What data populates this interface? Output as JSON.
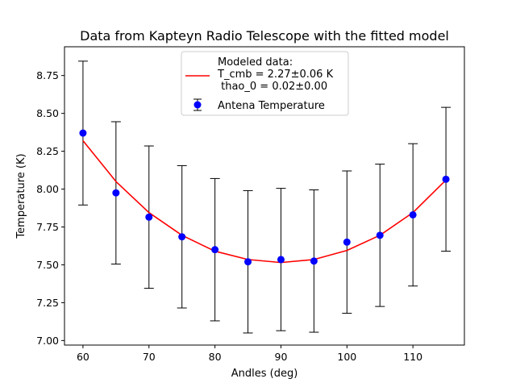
{
  "chart_data": {
    "type": "line",
    "title": "Data from Kapteyn Radio Telescope with the fitted model",
    "xlabel": "Andles (deg)",
    "ylabel": "Temperature (K)",
    "xlim": [
      57.2,
      117.8
    ],
    "ylim": [
      6.97,
      8.94
    ],
    "xticks": [
      60,
      70,
      80,
      90,
      100,
      110
    ],
    "xtick_labels": [
      "60",
      "70",
      "80",
      "90",
      "100",
      "110"
    ],
    "yticks": [
      7.0,
      7.25,
      7.5,
      7.75,
      8.0,
      8.25,
      8.5,
      8.75
    ],
    "ytick_labels": [
      "7.00",
      "7.25",
      "7.50",
      "7.75",
      "8.00",
      "8.25",
      "8.50",
      "8.75"
    ],
    "grid": false,
    "legend_position": "top-center",
    "series": [
      {
        "name": "Antena Temperature",
        "kind": "errorbar",
        "color": "#0000ff",
        "errorbar_color": "#000000",
        "x": [
          60,
          65,
          70,
          75,
          80,
          85,
          90,
          95,
          100,
          105,
          110,
          115
        ],
        "y": [
          8.37,
          7.975,
          7.815,
          7.685,
          7.6,
          7.52,
          7.535,
          7.525,
          7.65,
          7.695,
          7.83,
          8.065
        ],
        "yerr": [
          0.475,
          0.47,
          0.47,
          0.47,
          0.47,
          0.47,
          0.47,
          0.47,
          0.47,
          0.47,
          0.47,
          0.475
        ]
      },
      {
        "name": "Modeled data:\nT_cmb = 2.27±0.06  K\n thao_0 = 0.02±0.00",
        "kind": "line",
        "color": "#ff0000",
        "x": [
          60,
          65,
          70,
          75,
          80,
          85,
          90,
          95,
          100,
          105,
          110,
          115
        ],
        "y": [
          8.32,
          8.05,
          7.845,
          7.695,
          7.59,
          7.535,
          7.515,
          7.535,
          7.595,
          7.695,
          7.845,
          8.06
        ]
      }
    ],
    "legend": {
      "entries": [
        {
          "lines": [
            "Modeled data:",
            "T_cmb = 2.27±0.06  K",
            " thao_0 = 0.02±0.00"
          ]
        },
        {
          "lines": [
            "Antena Temperature"
          ]
        }
      ]
    }
  }
}
